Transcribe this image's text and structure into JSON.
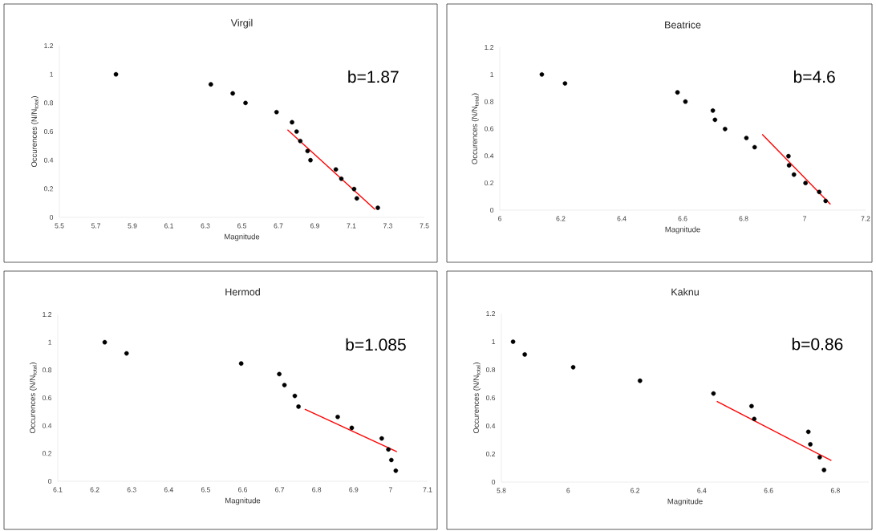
{
  "chart_data": [
    {
      "type": "scatter",
      "title": "Virgil",
      "xlabel": "Magnitude",
      "ylabel": "Occurences (N/N$_{total}$)",
      "annotations": [
        "b=1.87"
      ],
      "xlim": [
        5.5,
        7.5
      ],
      "xticks": [
        5.5,
        5.7,
        5.9,
        6.1,
        6.3,
        6.5,
        6.7,
        6.9,
        7.1,
        7.3,
        7.5
      ],
      "ylim": [
        0,
        1.2
      ],
      "yticks": [
        0,
        0.2,
        0.4,
        0.6,
        0.8,
        1,
        1.2
      ],
      "series": [
        {
          "marker": "circle",
          "color": "#000000",
          "x": [
            5.81,
            6.33,
            6.45,
            6.52,
            6.69,
            6.775,
            6.8,
            6.82,
            6.86,
            6.876,
            7.015,
            7.045,
            7.115,
            7.13,
            7.245
          ],
          "values": [
            1.0,
            0.93,
            0.867,
            0.8,
            0.736,
            0.665,
            0.6,
            0.534,
            0.464,
            0.4,
            0.335,
            0.27,
            0.198,
            0.133,
            0.067
          ]
        },
        {
          "type": "line",
          "marker": "none",
          "color": "#ff0000",
          "x": [
            6.75,
            7.23
          ],
          "values": [
            0.613,
            0.055
          ]
        }
      ]
    },
    {
      "type": "scatter",
      "title": "Beatrice",
      "xlabel": "Magnitude",
      "ylabel": "Occurences (N/N$_{total}$)",
      "annotations": [
        "b=4.6"
      ],
      "xlim": [
        6,
        7.2
      ],
      "xticks": [
        6,
        6.2,
        6.4,
        6.6,
        6.8,
        7,
        7.2
      ],
      "ylim": [
        0,
        1.2
      ],
      "yticks": [
        0,
        0.2,
        0.4,
        0.6,
        0.8,
        1,
        1.2
      ],
      "series": [
        {
          "marker": "circle",
          "color": "#000000",
          "x": [
            6.138,
            6.214,
            6.583,
            6.609,
            6.699,
            6.706,
            6.739,
            6.809,
            6.836,
            6.947,
            6.949,
            6.965,
            7.003,
            7.048,
            7.069
          ],
          "values": [
            1.0,
            0.934,
            0.868,
            0.8,
            0.734,
            0.666,
            0.598,
            0.532,
            0.464,
            0.398,
            0.33,
            0.262,
            0.2,
            0.134,
            0.068
          ]
        },
        {
          "type": "line",
          "marker": "none",
          "color": "#ff0000",
          "x": [
            6.861,
            7.085
          ],
          "values": [
            0.559,
            0.043
          ]
        }
      ]
    },
    {
      "type": "scatter",
      "title": "Hermod",
      "xlabel": "Magnitude",
      "ylabel": "Occurences (N/N$_{total}$)",
      "annotations": [
        "b=1.085"
      ],
      "xlim": [
        6.1,
        7.1
      ],
      "xticks": [
        6.1,
        6.2,
        6.3,
        6.4,
        6.5,
        6.6,
        6.7,
        6.8,
        6.9,
        7,
        7.1
      ],
      "ylim": [
        0,
        1.2
      ],
      "yticks": [
        0,
        0.2,
        0.4,
        0.6,
        0.8,
        1,
        1.2
      ],
      "series": [
        {
          "marker": "circle",
          "color": "#000000",
          "x": [
            6.227,
            6.286,
            6.596,
            6.699,
            6.713,
            6.741,
            6.751,
            6.857,
            6.895,
            6.976,
            6.994,
            7.002,
            7.014
          ],
          "values": [
            1.0,
            0.92,
            0.847,
            0.771,
            0.692,
            0.614,
            0.537,
            0.463,
            0.384,
            0.308,
            0.229,
            0.153,
            0.076
          ]
        },
        {
          "type": "line",
          "marker": "none",
          "color": "#ff0000",
          "x": [
            6.768,
            7.017
          ],
          "values": [
            0.519,
            0.213
          ]
        }
      ]
    },
    {
      "type": "scatter",
      "title": "Kaknu",
      "xlabel": "Magnitude",
      "ylabel": "Occurences (N/N$_{total}$)",
      "annotations": [
        "b=0.86"
      ],
      "xlim": [
        5.8,
        6.9
      ],
      "xticks": [
        5.8,
        6,
        6.2,
        6.4,
        6.6,
        6.8
      ],
      "ylim": [
        0,
        1.2
      ],
      "yticks": [
        0,
        0.2,
        0.4,
        0.6,
        0.8,
        1,
        1.2
      ],
      "series": [
        {
          "marker": "circle",
          "color": "#000000",
          "x": [
            5.835,
            5.87,
            6.015,
            6.215,
            6.435,
            6.549,
            6.557,
            6.719,
            6.725,
            6.753,
            6.766
          ],
          "values": [
            1.0,
            0.909,
            0.818,
            0.722,
            0.631,
            0.541,
            0.45,
            0.358,
            0.269,
            0.177,
            0.086
          ]
        },
        {
          "type": "line",
          "marker": "none",
          "color": "#ff0000",
          "x": [
            6.445,
            6.788
          ],
          "values": [
            0.575,
            0.153
          ]
        }
      ]
    }
  ]
}
